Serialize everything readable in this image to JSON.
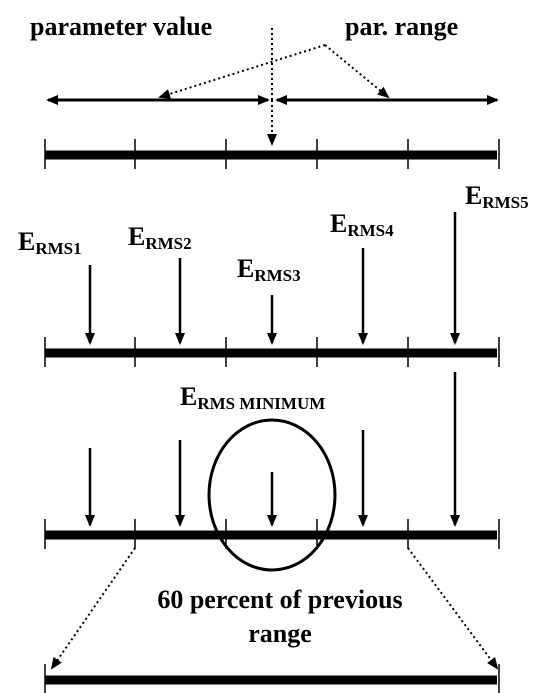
{
  "header": {
    "parameter_value": "parameter value",
    "par_range": "par. range"
  },
  "labels": [
    {
      "main": "E",
      "sub": "RMS1"
    },
    {
      "main": "E",
      "sub": "RMS2"
    },
    {
      "main": "E",
      "sub": "RMS3"
    },
    {
      "main": "E",
      "sub": "RMS4"
    },
    {
      "main": "E",
      "sub": "RMS5"
    }
  ],
  "minimum": {
    "main": "E",
    "sub": "RMS MINIMUM"
  },
  "footer": {
    "line1": "60 percent of previous",
    "line2": "range"
  }
}
